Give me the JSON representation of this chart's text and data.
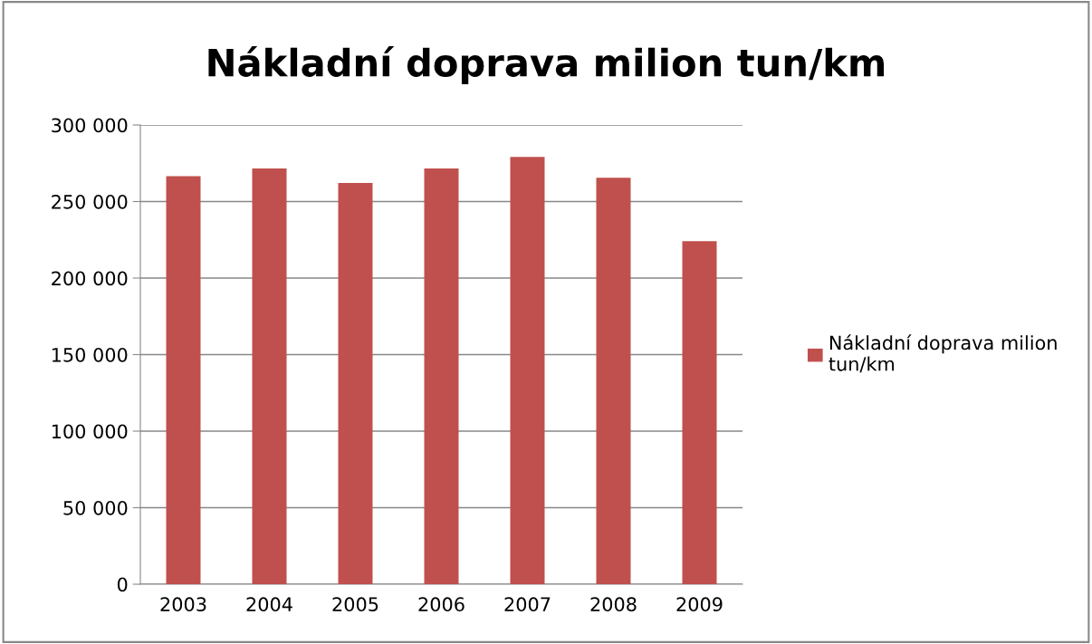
{
  "chart_data": {
    "type": "bar",
    "title": "Nákladní doprava milion tun/km",
    "categories": [
      "2003",
      "2004",
      "2005",
      "2006",
      "2007",
      "2008",
      "2009"
    ],
    "series": [
      {
        "name": "Nákladní doprava milion tun/km",
        "color": "#c0504d",
        "values": [
          266500,
          271600,
          262200,
          271600,
          279200,
          265600,
          224100
        ]
      }
    ],
    "ylim": [
      0,
      300000
    ],
    "yticks": [
      {
        "value": 0,
        "label": "0"
      },
      {
        "value": 50000,
        "label": "50 000"
      },
      {
        "value": 100000,
        "label": "100 000"
      },
      {
        "value": 150000,
        "label": "150 000"
      },
      {
        "value": 200000,
        "label": "200 000"
      },
      {
        "value": 250000,
        "label": "250 000"
      },
      {
        "value": 300000,
        "label": "300 000"
      }
    ],
    "grid": "y",
    "legend": "right"
  }
}
